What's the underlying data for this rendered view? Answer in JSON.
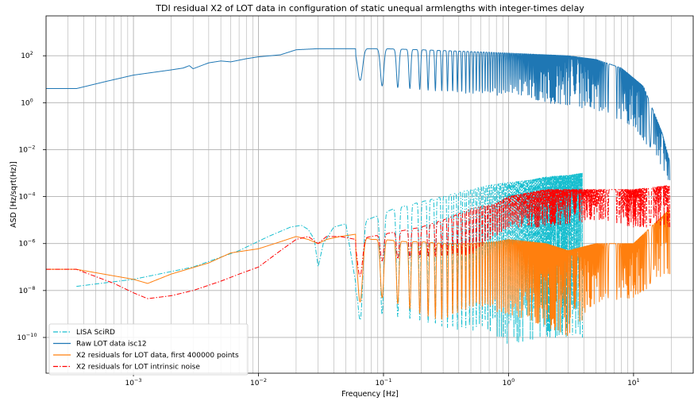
{
  "chart_data": {
    "type": "line",
    "title": "TDI residual X2 of LOT data in configuration of static unequal armlengths with integer-times delay",
    "xlabel": "Frequency [Hz]",
    "ylabel": "ASD [Hz/sqrt(Hz)]",
    "xscale": "log",
    "yscale": "log",
    "xlim": [
      0.0002,
      30
    ],
    "ylim": [
      3e-12,
      5000
    ],
    "grid": true,
    "legend_position": "lower-left",
    "x_ticks": [
      {
        "value": 0.001,
        "base": "10",
        "exp": "−3"
      },
      {
        "value": 0.01,
        "base": "10",
        "exp": "−2"
      },
      {
        "value": 0.1,
        "base": "10",
        "exp": "−1"
      },
      {
        "value": 1,
        "base": "10",
        "exp": "0"
      },
      {
        "value": 10,
        "base": "10",
        "exp": "1"
      }
    ],
    "y_ticks": [
      {
        "value": 1e-10,
        "base": "10",
        "exp": "−10"
      },
      {
        "value": 1e-08,
        "base": "10",
        "exp": "−8"
      },
      {
        "value": 1e-06,
        "base": "10",
        "exp": "−6"
      },
      {
        "value": 0.0001,
        "base": "10",
        "exp": "−4"
      },
      {
        "value": 0.01,
        "base": "10",
        "exp": "−2"
      },
      {
        "value": 1,
        "base": "10",
        "exp": "0"
      },
      {
        "value": 100,
        "base": "10",
        "exp": "2"
      }
    ],
    "series": [
      {
        "name": "LISA SciRD",
        "color": "#17becf",
        "dash": "dashdot",
        "x": [
          0.00035,
          0.001,
          0.003,
          0.007,
          0.012,
          0.018,
          0.022,
          0.025,
          0.028,
          0.03,
          0.033,
          0.04,
          0.05,
          0.06,
          0.07,
          0.08,
          0.1,
          0.12,
          0.15,
          0.2,
          0.3,
          0.5,
          0.7,
          1.0,
          1.5,
          2.0,
          3.0,
          3.9
        ],
        "y": [
          1.5e-08,
          3e-08,
          1e-07,
          5e-07,
          2e-06,
          5e-06,
          6e-06,
          4e-06,
          1.5e-06,
          1e-07,
          1e-06,
          5e-06,
          7e-06,
          2e-08,
          1e-05,
          1.2e-05,
          2e-05,
          3e-05,
          4e-05,
          6e-05,
          0.0001,
          0.0002,
          0.0003,
          0.0004,
          0.0005,
          0.0007,
          0.0008,
          0.001
        ],
        "lower_envelope": {
          "x": [
            0.06,
            0.1,
            0.2,
            0.4,
            0.7,
            1.0,
            2.0,
            3.0
          ],
          "y": [
            5e-10,
            1e-09,
            5e-10,
            2e-10,
            2e-10,
            5e-11,
            1e-10,
            1e-10
          ]
        }
      },
      {
        "name": "Raw LOT data isc12",
        "color": "#1f77b4",
        "dash": "solid",
        "x": [
          0.0002,
          0.00035,
          0.0006,
          0.001,
          0.002,
          0.0025,
          0.0028,
          0.003,
          0.004,
          0.005,
          0.006,
          0.008,
          0.01,
          0.015,
          0.02,
          0.03,
          0.05,
          0.1,
          0.2,
          0.5,
          1.0,
          2.0,
          3.0,
          5.0,
          8.0,
          12.0,
          17.0,
          19.5
        ],
        "y": [
          4,
          4,
          8,
          15,
          25,
          30,
          38,
          28,
          50,
          60,
          55,
          75,
          90,
          110,
          180,
          200,
          200,
          200,
          180,
          150,
          130,
          110,
          100,
          70,
          30,
          5,
          0.05,
          0.003
        ],
        "lower_envelope": {
          "x": [
            0.06,
            0.1,
            0.3,
            0.8,
            1.0,
            2.0,
            5.0,
            10.0,
            15.0,
            19.0
          ],
          "y": [
            10,
            5,
            3,
            2,
            3,
            1,
            0.5,
            0.1,
            0.005,
            0.0005
          ]
        }
      },
      {
        "name": "X2 residuals for LOT data, first 400000 points",
        "color": "#ff7f0e",
        "dash": "solid",
        "x": [
          0.0002,
          0.00035,
          0.001,
          0.0013,
          0.002,
          0.004,
          0.006,
          0.01,
          0.015,
          0.02,
          0.025,
          0.03,
          0.035,
          0.045,
          0.06,
          0.08,
          0.1,
          0.15,
          0.2,
          0.3,
          0.5,
          0.8,
          1.0,
          2.0,
          3.0,
          5.0,
          10.0,
          19.5
        ],
        "y": [
          8e-08,
          8e-08,
          3e-08,
          2e-08,
          5e-08,
          1.5e-07,
          4e-07,
          6e-07,
          1.2e-06,
          2e-06,
          1.5e-06,
          1e-06,
          1.5e-06,
          2e-06,
          2.5e-06,
          1.5e-06,
          1.5e-06,
          1.2e-06,
          1.2e-06,
          1e-06,
          1e-06,
          1.2e-06,
          1.5e-06,
          1e-06,
          5e-07,
          1e-06,
          1e-06,
          3e-05
        ],
        "lower_envelope": {
          "x": [
            0.06,
            0.1,
            0.2,
            0.3,
            0.5,
            1.0,
            2.0,
            3.0,
            5.0,
            10.0,
            19.0
          ],
          "y": [
            3e-09,
            5e-09,
            1e-09,
            5e-10,
            2e-09,
            1e-09,
            3e-10,
            1e-10,
            3e-09,
            5e-09,
            5e-08
          ]
        }
      },
      {
        "name": "X2 residuals for LOT intrinsic noise",
        "color": "#ff0000",
        "dash": "dashdot",
        "x": [
          0.0002,
          0.00035,
          0.0007,
          0.001,
          0.0013,
          0.002,
          0.003,
          0.005,
          0.007,
          0.01,
          0.015,
          0.02,
          0.025,
          0.03,
          0.035,
          0.045,
          0.06,
          0.08,
          0.1,
          0.2,
          0.3,
          0.5,
          0.8,
          1.0,
          2.0,
          3.0,
          5.0,
          10.0,
          19.5
        ],
        "y": [
          8e-08,
          8e-08,
          2e-08,
          8e-09,
          4.5e-09,
          6e-09,
          1e-08,
          2.5e-08,
          5e-08,
          1e-07,
          5e-07,
          1.5e-06,
          2e-06,
          1e-06,
          2e-06,
          2e-06,
          1.5e-06,
          2e-06,
          2.5e-06,
          5e-06,
          1e-05,
          3e-05,
          5e-05,
          0.0001,
          0.0002,
          0.0002,
          0.0002,
          0.0002,
          0.0003
        ],
        "lower_envelope": {
          "x": [
            0.06,
            0.1,
            0.3,
            0.5,
            1.0,
            2.0,
            5.0,
            10.0,
            19.0
          ],
          "y": [
            3e-08,
            2e-07,
            3e-07,
            3e-07,
            5e-06,
            5e-06,
            1e-05,
            5e-06,
            5e-06
          ]
        }
      }
    ]
  }
}
